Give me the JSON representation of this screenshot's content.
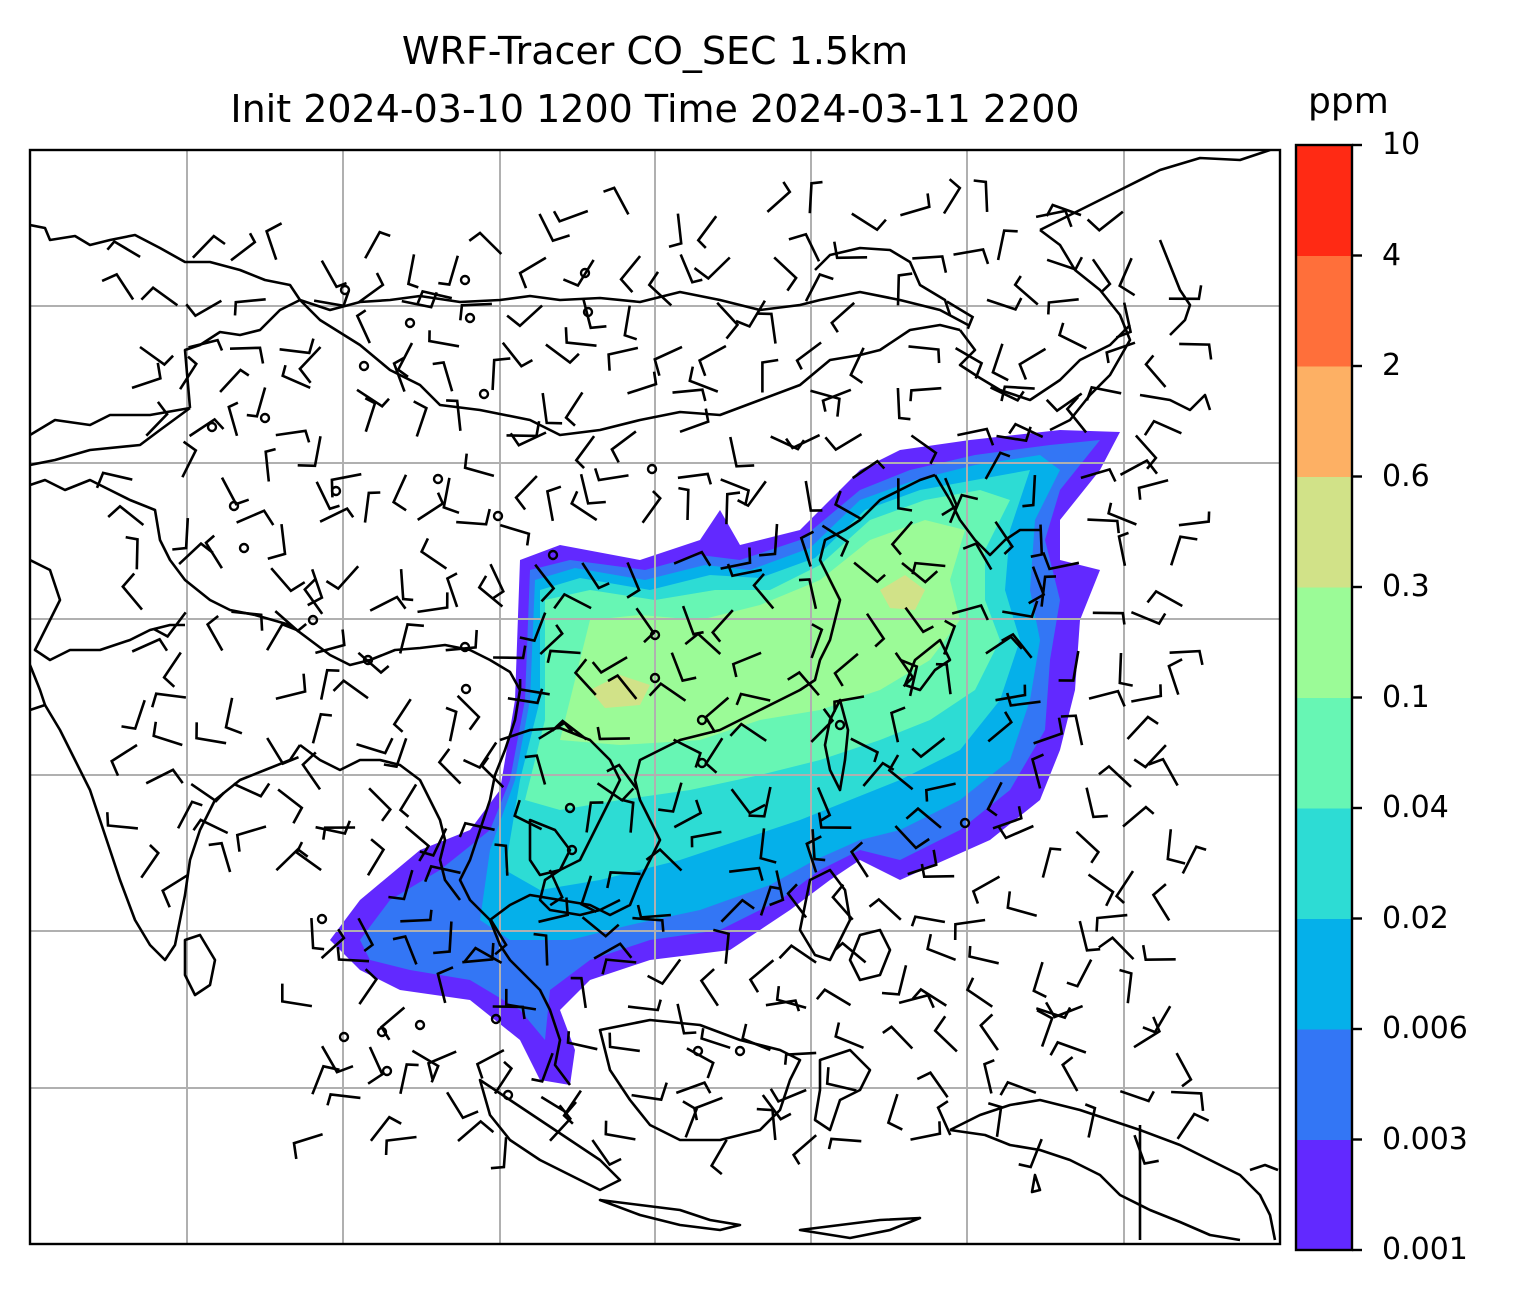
{
  "title": {
    "line1": "WRF-Tracer CO_SEC 1.5km",
    "line2": "Init 2024-03-10 1200 Time 2024-03-11 2200"
  },
  "colorbar": {
    "unit": "ppm",
    "levels": [
      "0.001",
      "0.003",
      "0.006",
      "0.02",
      "0.04",
      "0.1",
      "0.3",
      "0.6",
      "2",
      "4",
      "10"
    ],
    "colors": [
      "#6229ff",
      "#3376f5",
      "#05b0ea",
      "#2ddcd4",
      "#67f6b4",
      "#9bfb97",
      "#d1e288",
      "#fdb064",
      "#ff6f3a",
      "#ff2a14"
    ]
  },
  "map_style": {
    "coastline": "#000000",
    "grid": "#b0b0b0",
    "barb": "#000000"
  }
}
